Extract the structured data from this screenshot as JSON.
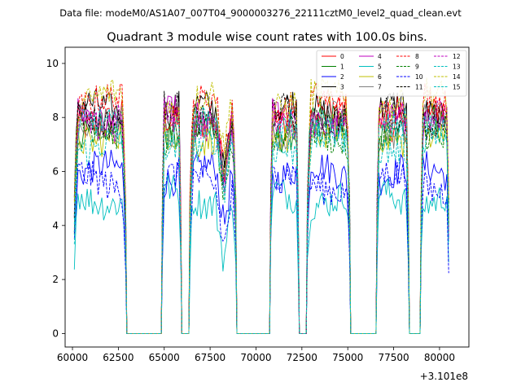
{
  "header": {
    "file_label": "Data file: modeM0/AS1A07_007T04_9000003276_22111cztM0_level2_quad_clean.evt",
    "title": "Quadrant 3 module wise count rates with 100.0s bins."
  },
  "chart_data": {
    "type": "line",
    "title": "Quadrant 3 module wise count rates with 100.0s bins.",
    "xlabel": "",
    "ylabel": "",
    "x_offset_label": "+3.101e8",
    "xlim": [
      59600,
      81600
    ],
    "ylim": [
      -0.5,
      10.6
    ],
    "x_ticks": [
      60000,
      62500,
      65000,
      67500,
      70000,
      72500,
      75000,
      77500,
      80000
    ],
    "x_tick_labels": [
      "60000",
      "62500",
      "65000",
      "67500",
      "70000",
      "72500",
      "75000",
      "77500",
      "80000"
    ],
    "y_ticks": [
      0,
      2,
      4,
      6,
      8,
      10
    ],
    "y_tick_labels": [
      "0",
      "2",
      "4",
      "6",
      "8",
      "10"
    ],
    "grid": false,
    "legend_position": "top-right",
    "legend_columns": 4,
    "active_intervals": [
      [
        60100,
        62900
      ],
      [
        64900,
        65900
      ],
      [
        66400,
        68900
      ],
      [
        70800,
        72300
      ],
      [
        72800,
        75100
      ],
      [
        76600,
        78300
      ],
      [
        79000,
        80500
      ]
    ],
    "zero_intervals": [
      [
        62900,
        64900
      ],
      [
        65900,
        66400
      ],
      [
        68900,
        70800
      ],
      [
        72300,
        72800
      ],
      [
        75100,
        76600
      ],
      [
        78300,
        79000
      ]
    ],
    "step_seconds": 100,
    "series": [
      {
        "name": "0",
        "color": "#ff0000",
        "style": "solid",
        "level": 8.0
      },
      {
        "name": "1",
        "color": "#008000",
        "style": "solid",
        "level": 7.6
      },
      {
        "name": "2",
        "color": "#0000ff",
        "style": "solid",
        "level": 5.9
      },
      {
        "name": "3",
        "color": "#000000",
        "style": "solid",
        "level": 8.2
      },
      {
        "name": "4",
        "color": "#bf00bf",
        "style": "solid",
        "level": 7.9
      },
      {
        "name": "5",
        "color": "#00bfbf",
        "style": "solid",
        "level": 5.1
      },
      {
        "name": "6",
        "color": "#bfbf00",
        "style": "solid",
        "level": 7.4
      },
      {
        "name": "7",
        "color": "#808080",
        "style": "solid",
        "level": 7.7
      },
      {
        "name": "8",
        "color": "#ff0000",
        "style": "dashed",
        "level": 8.4
      },
      {
        "name": "9",
        "color": "#008000",
        "style": "dashed",
        "level": 7.3
      },
      {
        "name": "10",
        "color": "#0000ff",
        "style": "dashed",
        "level": 5.6
      },
      {
        "name": "11",
        "color": "#000000",
        "style": "dashed",
        "level": 8.1
      },
      {
        "name": "12",
        "color": "#bf00bf",
        "style": "dashed",
        "level": 8.0
      },
      {
        "name": "13",
        "color": "#00bfbf",
        "style": "dashed",
        "level": 7.1
      },
      {
        "name": "14",
        "color": "#bfbf00",
        "style": "dashed",
        "level": 8.6
      },
      {
        "name": "15",
        "color": "#00bfbf",
        "style": "dashed",
        "level": 7.5
      }
    ]
  }
}
